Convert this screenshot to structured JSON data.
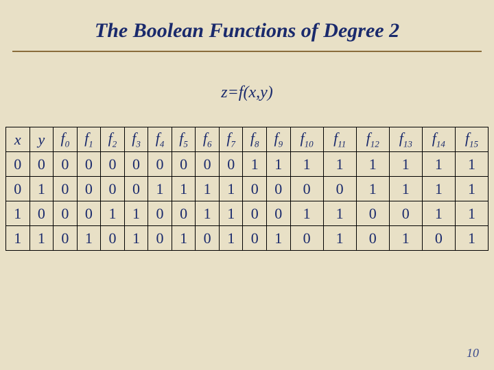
{
  "title": "The Boolean Functions of Degree 2",
  "subtitle": "z=f(x,y)",
  "page_number": "10",
  "background_color": "#e8e0c6",
  "title_color": "#1a2a6c",
  "rule_color": "#8a6d3b",
  "table": {
    "headers_plain": [
      "x",
      "y",
      "f0",
      "f1",
      "f2",
      "f3",
      "f4",
      "f5",
      "f6",
      "f7",
      "f8",
      "f9",
      "f10",
      "f11",
      "f12",
      "f13",
      "f14",
      "f15"
    ],
    "header_base": [
      "x",
      "y",
      "f",
      "f",
      "f",
      "f",
      "f",
      "f",
      "f",
      "f",
      "f",
      "f",
      "f",
      "f",
      "f",
      "f",
      "f",
      "f"
    ],
    "header_sub": [
      "",
      "",
      "0",
      "1",
      "2",
      "3",
      "4",
      "5",
      "6",
      "7",
      "8",
      "9",
      "10",
      "11",
      "12",
      "13",
      "14",
      "15"
    ],
    "rows": [
      [
        "0",
        "0",
        "0",
        "0",
        "0",
        "0",
        "0",
        "0",
        "0",
        "0",
        "1",
        "1",
        "1",
        "1",
        "1",
        "1",
        "1",
        "1"
      ],
      [
        "0",
        "1",
        "0",
        "0",
        "0",
        "0",
        "1",
        "1",
        "1",
        "1",
        "0",
        "0",
        "0",
        "0",
        "1",
        "1",
        "1",
        "1"
      ],
      [
        "1",
        "0",
        "0",
        "0",
        "1",
        "1",
        "0",
        "0",
        "1",
        "1",
        "0",
        "0",
        "1",
        "1",
        "0",
        "0",
        "1",
        "1"
      ],
      [
        "1",
        "1",
        "0",
        "1",
        "0",
        "1",
        "0",
        "1",
        "0",
        "1",
        "0",
        "1",
        "0",
        "1",
        "0",
        "1",
        "0",
        "1"
      ]
    ],
    "border_color": "#000000",
    "cell_text_color": "#1a2a6c",
    "cell_fontsize": 22,
    "header_fontstyle": "italic"
  }
}
